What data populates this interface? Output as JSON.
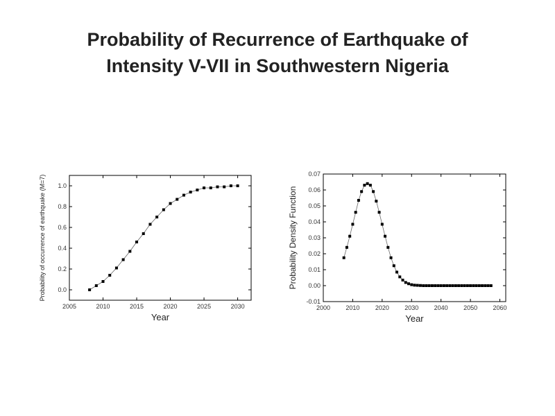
{
  "slide": {
    "title_line1": "Probability of Recurrence of Earthquake of",
    "title_line2": "Intensity V-VII in Southwestern Nigeria"
  },
  "chart_data": [
    {
      "type": "line",
      "markers": "square",
      "xlabel": "Year",
      "ylabel": "Probability of occurrence of earthquake (M=7)",
      "xlim": [
        2005,
        2032
      ],
      "ylim": [
        -0.1,
        1.1
      ],
      "xticks": [
        2005,
        2010,
        2015,
        2020,
        2025,
        2030
      ],
      "yticks": [
        0.0,
        0.2,
        0.4,
        0.6,
        0.8,
        1.0
      ],
      "x": [
        2008,
        2009,
        2010,
        2011,
        2012,
        2013,
        2014,
        2015,
        2016,
        2017,
        2018,
        2019,
        2020,
        2021,
        2022,
        2023,
        2024,
        2025,
        2026,
        2027,
        2028,
        2029,
        2030
      ],
      "y": [
        0.0,
        0.04,
        0.08,
        0.14,
        0.21,
        0.29,
        0.37,
        0.46,
        0.54,
        0.63,
        0.7,
        0.77,
        0.83,
        0.87,
        0.91,
        0.94,
        0.96,
        0.98,
        0.98,
        0.99,
        0.99,
        1.0,
        1.0
      ],
      "grid": false,
      "color": "#000000"
    },
    {
      "type": "line",
      "markers": "square",
      "xlabel": "Year",
      "ylabel": "Probability Density Function",
      "xlim": [
        2000,
        2062
      ],
      "ylim": [
        -0.01,
        0.07
      ],
      "xticks": [
        2000,
        2010,
        2020,
        2030,
        2040,
        2050,
        2060
      ],
      "yticks": [
        -0.01,
        0.0,
        0.01,
        0.02,
        0.03,
        0.04,
        0.05,
        0.06,
        0.07
      ],
      "x": [
        2007,
        2008,
        2009,
        2010,
        2011,
        2012,
        2013,
        2014,
        2015,
        2016,
        2017,
        2018,
        2019,
        2020,
        2021,
        2022,
        2023,
        2024,
        2025,
        2026,
        2027,
        2028,
        2029,
        2030,
        2031,
        2032,
        2033,
        2034,
        2035,
        2036,
        2037,
        2038,
        2039,
        2040,
        2041,
        2042,
        2043,
        2044,
        2045,
        2046,
        2047,
        2048,
        2049,
        2050,
        2051,
        2052,
        2053,
        2054,
        2055,
        2056,
        2057
      ],
      "y": [
        0.0175,
        0.024,
        0.031,
        0.0385,
        0.046,
        0.0535,
        0.059,
        0.063,
        0.064,
        0.063,
        0.059,
        0.053,
        0.046,
        0.0385,
        0.031,
        0.024,
        0.0175,
        0.0125,
        0.0085,
        0.0055,
        0.0035,
        0.002,
        0.0012,
        0.0006,
        0.0003,
        0.0002,
        0.0001,
        0.0,
        0.0,
        0.0,
        0.0,
        0.0,
        0.0,
        0.0,
        0.0,
        0.0,
        0.0,
        0.0,
        0.0,
        0.0,
        0.0,
        0.0,
        0.0,
        0.0,
        0.0,
        0.0,
        0.0,
        0.0,
        0.0,
        0.0,
        0.0
      ],
      "grid": false,
      "color": "#000000"
    }
  ]
}
